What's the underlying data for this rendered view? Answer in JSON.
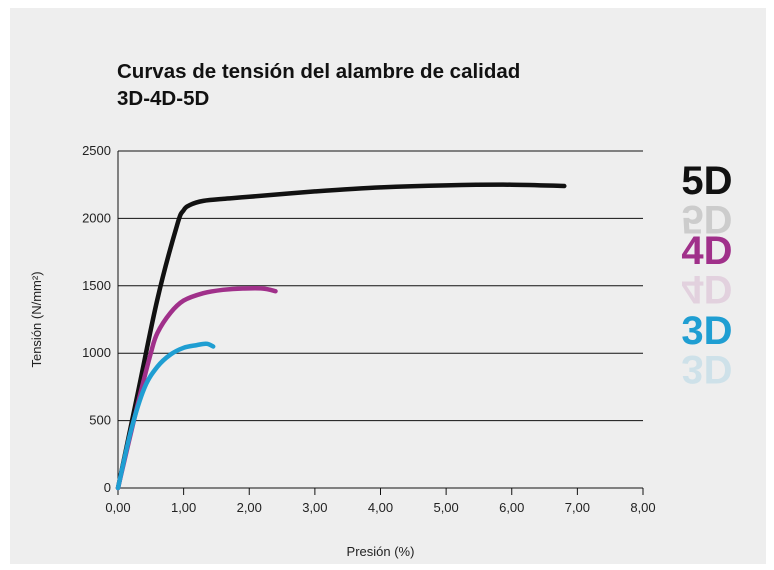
{
  "chart_data": {
    "type": "line",
    "title_line1": "Curvas de tensión del alambre de calidad",
    "title_line2": "3D-4D-5D",
    "xlabel": "Presión (%)",
    "ylabel": "Tensión (N/mm²)",
    "xlim": [
      0,
      8
    ],
    "ylim": [
      0,
      2500
    ],
    "xticks": [
      0,
      1,
      2,
      3,
      4,
      5,
      6,
      7,
      8
    ],
    "xtick_labels": [
      "0,00",
      "1,00",
      "2,00",
      "3,00",
      "4,00",
      "5,00",
      "6,00",
      "7,00",
      "8,00"
    ],
    "yticks": [
      0,
      500,
      1000,
      1500,
      2000,
      2500
    ],
    "ytick_labels": [
      "0",
      "500",
      "1000",
      "1500",
      "2000",
      "2500"
    ],
    "grid": "horizontal",
    "legend": "right",
    "series": [
      {
        "name": "5D",
        "color": "#111111",
        "x": [
          0,
          0.3,
          0.6,
          0.9,
          1.0,
          1.1,
          1.3,
          1.6,
          2.0,
          3.0,
          4.0,
          5.0,
          6.0,
          6.8
        ],
        "y": [
          0,
          700,
          1400,
          1950,
          2060,
          2100,
          2130,
          2145,
          2160,
          2200,
          2230,
          2245,
          2250,
          2240
        ]
      },
      {
        "name": "4D",
        "color": "#a0308a",
        "x": [
          0,
          0.3,
          0.5,
          0.6,
          0.8,
          1.0,
          1.3,
          1.6,
          1.9,
          2.2,
          2.4
        ],
        "y": [
          0,
          620,
          1000,
          1150,
          1300,
          1390,
          1445,
          1470,
          1480,
          1480,
          1460
        ]
      },
      {
        "name": "3D",
        "color": "#1f9ed2",
        "x": [
          0,
          0.2,
          0.4,
          0.6,
          0.8,
          1.0,
          1.2,
          1.35,
          1.45
        ],
        "y": [
          0,
          430,
          740,
          900,
          990,
          1040,
          1060,
          1070,
          1050
        ]
      }
    ]
  }
}
